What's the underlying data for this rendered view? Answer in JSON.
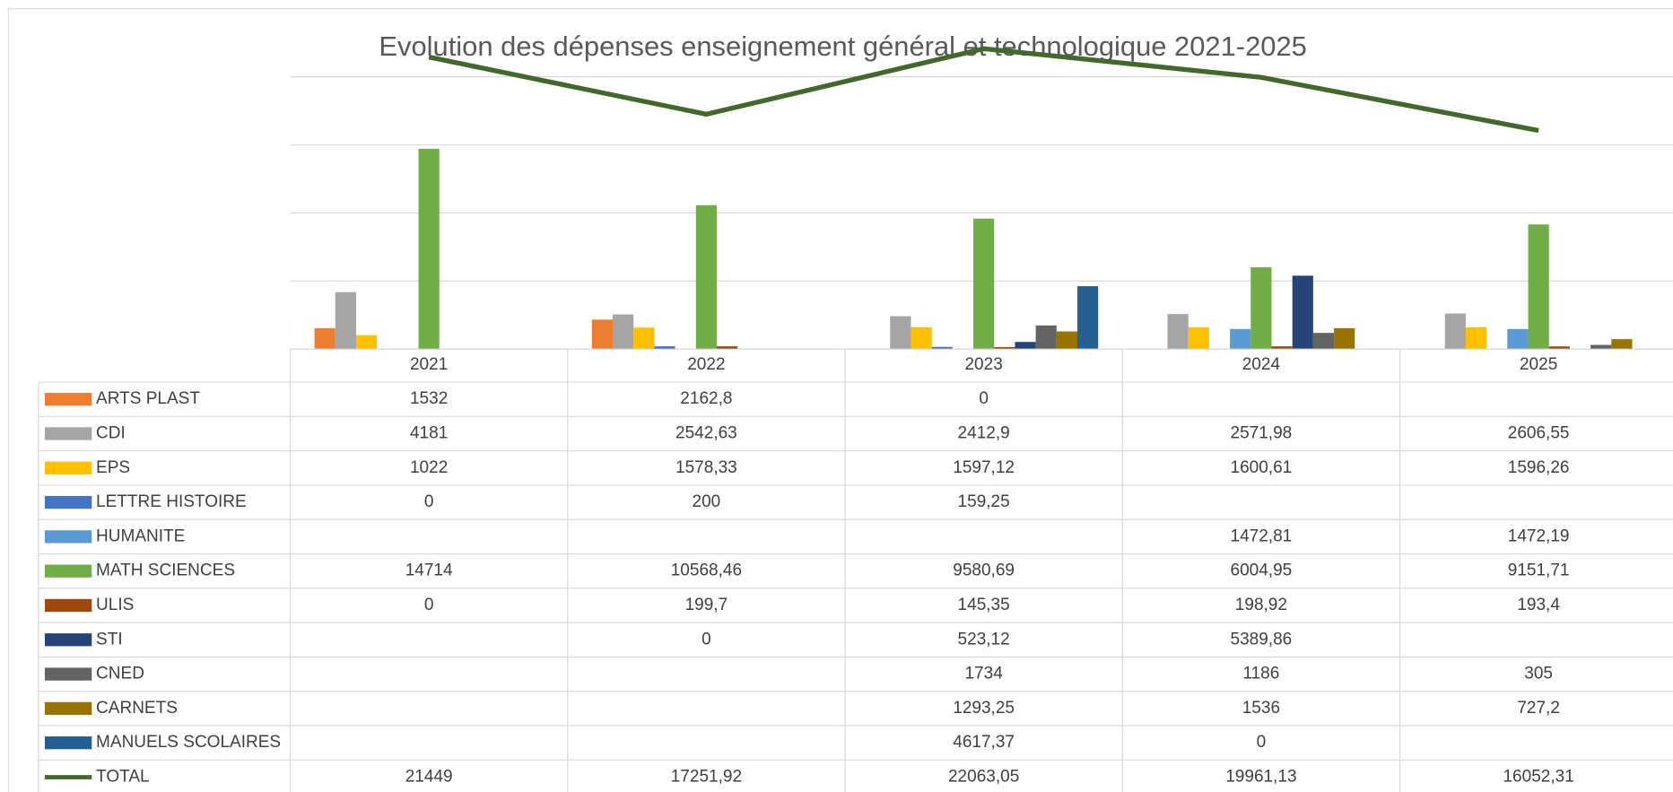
{
  "chart_data": {
    "type": "bar",
    "title": "Evolution des dépenses enseignement général et technologique 2021-2025",
    "categories": [
      "2021",
      "2022",
      "2023",
      "2024",
      "2025"
    ],
    "ylim": [
      0,
      25000
    ],
    "yticks": [
      0,
      5000,
      10000,
      15000,
      20000
    ],
    "grid": true,
    "series": [
      {
        "name": "ARTS PLAST",
        "color": "#ED7D31",
        "values": [
          1532,
          2162.8,
          0,
          null,
          null
        ],
        "value_labels": [
          "1532",
          "2162,8",
          "0",
          null,
          null
        ]
      },
      {
        "name": "CDI",
        "color": "#A5A5A5",
        "values": [
          4181,
          2542.63,
          2412.9,
          2571.98,
          2606.55
        ],
        "value_labels": [
          "4181",
          "2542,63",
          "2412,9",
          "2571,98",
          "2606,55"
        ]
      },
      {
        "name": "EPS",
        "color": "#FFC000",
        "values": [
          1022,
          1578.33,
          1597.12,
          1600.61,
          1596.26
        ],
        "value_labels": [
          "1022",
          "1578,33",
          "1597,12",
          "1600,61",
          "1596,26"
        ]
      },
      {
        "name": "LETTRE HISTOIRE",
        "color": "#4472C4",
        "values": [
          0,
          200,
          159.25,
          null,
          null
        ],
        "value_labels": [
          "0",
          "200",
          "159,25",
          null,
          null
        ]
      },
      {
        "name": "HUMANITE",
        "color": "#5B9BD5",
        "values": [
          null,
          null,
          null,
          1472.81,
          1472.19
        ],
        "value_labels": [
          null,
          null,
          null,
          "1472,81",
          "1472,19"
        ]
      },
      {
        "name": "MATH SCIENCES",
        "color": "#70AD47",
        "values": [
          14714,
          10568.46,
          9580.69,
          6004.95,
          9151.71
        ],
        "value_labels": [
          "14714",
          "10568,46",
          "9580,69",
          "6004,95",
          "9151,71"
        ]
      },
      {
        "name": "ULIS",
        "color": "#9E480E",
        "values": [
          0,
          199.7,
          145.35,
          198.92,
          193.4
        ],
        "value_labels": [
          "0",
          "199,7",
          "145,35",
          "198,92",
          "193,4"
        ]
      },
      {
        "name": "STI",
        "color": "#264478",
        "values": [
          null,
          0,
          523.12,
          5389.86,
          null
        ],
        "value_labels": [
          null,
          "0",
          "523,12",
          "5389,86",
          null
        ]
      },
      {
        "name": "CNED",
        "color": "#636363",
        "values": [
          null,
          null,
          1734,
          1186,
          305
        ],
        "value_labels": [
          null,
          null,
          "1734",
          "1186",
          "305"
        ]
      },
      {
        "name": "CARNETS",
        "color": "#997300",
        "values": [
          null,
          null,
          1293.25,
          1536,
          727.2
        ],
        "value_labels": [
          null,
          null,
          "1293,25",
          "1536",
          "727,2"
        ]
      },
      {
        "name": "MANUELS SCOLAIRES",
        "color": "#255E91",
        "values": [
          null,
          null,
          4617.37,
          0,
          null
        ],
        "value_labels": [
          null,
          null,
          "4617,37",
          "0",
          null
        ]
      },
      {
        "name": "TOTAL",
        "type": "line",
        "color": "#43682B",
        "values": [
          21449,
          17251.92,
          22063.05,
          19961.13,
          16052.31
        ],
        "value_labels": [
          "21449",
          "17251,92",
          "22063,05",
          "19961,13",
          "16052,31"
        ]
      }
    ]
  }
}
